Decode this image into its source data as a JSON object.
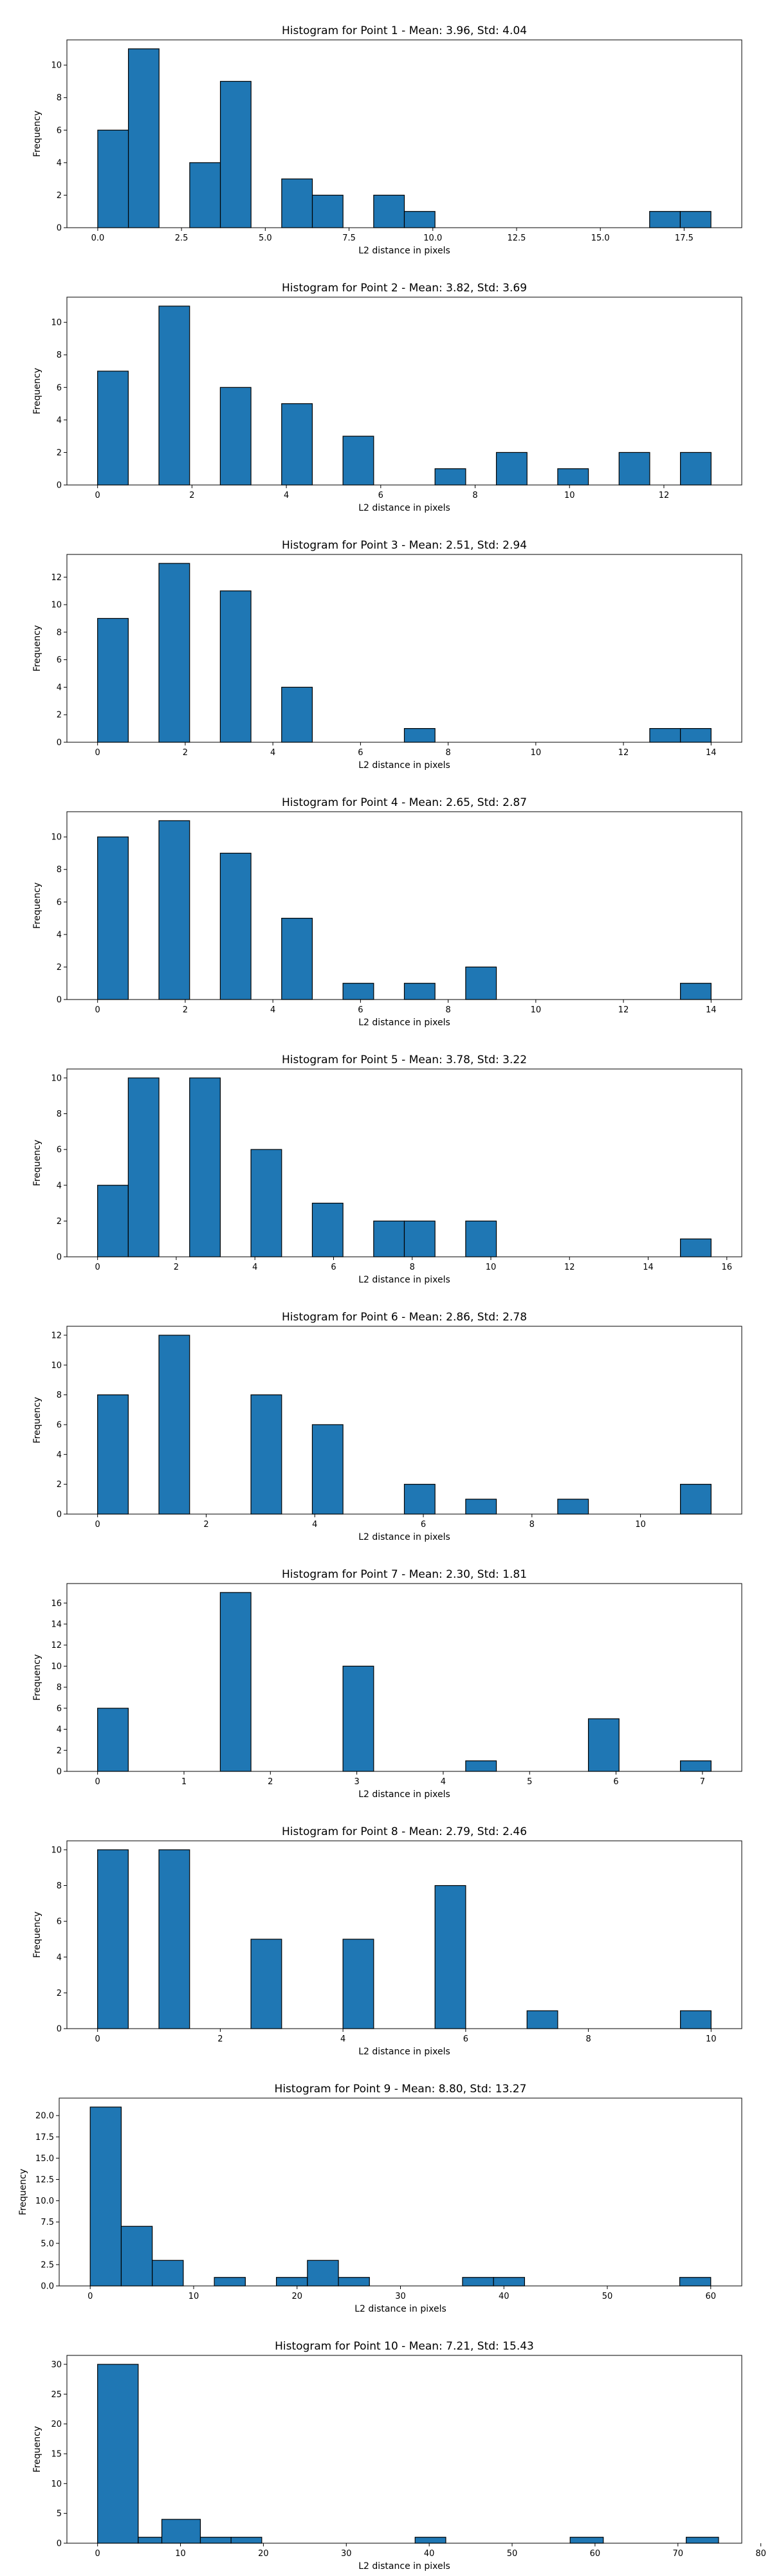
{
  "chart_data": [
    {
      "type": "bar",
      "title": "Histogram for Point 1 - Mean: 3.96, Std: 4.04",
      "xlabel": "L2 distance in pixels",
      "ylabel": "Frequency",
      "xlim": [
        -0.92,
        19.22
      ],
      "ylim": [
        0,
        11.55
      ],
      "xticks": [
        0.0,
        2.5,
        5.0,
        7.5,
        10.0,
        12.5,
        15.0,
        17.5
      ],
      "xtick_labels": [
        "0.0",
        "2.5",
        "5.0",
        "7.5",
        "10.0",
        "12.5",
        "15.0",
        "17.5"
      ],
      "yticks": [
        0,
        2,
        4,
        6,
        8,
        10
      ],
      "ytick_labels": [
        "0",
        "2",
        "4",
        "6",
        "8",
        "10"
      ],
      "bins": [
        {
          "x0": 0.0,
          "x1": 0.915,
          "count": 6
        },
        {
          "x0": 0.915,
          "x1": 1.83,
          "count": 11
        },
        {
          "x0": 2.745,
          "x1": 3.66,
          "count": 4
        },
        {
          "x0": 3.66,
          "x1": 4.575,
          "count": 9
        },
        {
          "x0": 5.49,
          "x1": 6.405,
          "count": 3
        },
        {
          "x0": 6.405,
          "x1": 7.32,
          "count": 2
        },
        {
          "x0": 8.235,
          "x1": 9.15,
          "count": 2
        },
        {
          "x0": 9.15,
          "x1": 10.065,
          "count": 1
        },
        {
          "x0": 16.47,
          "x1": 17.385,
          "count": 1
        },
        {
          "x0": 17.385,
          "x1": 18.3,
          "count": 1
        }
      ],
      "bar_color": "#1f77b4",
      "edge_color": "#000000",
      "grid": false,
      "legend": "none"
    },
    {
      "type": "bar",
      "title": "Histogram for Point 2 - Mean: 3.82, Std: 3.69",
      "xlabel": "L2 distance in pixels",
      "ylabel": "Frequency",
      "xlim": [
        -0.65,
        13.65
      ],
      "ylim": [
        0,
        11.55
      ],
      "xticks": [
        0,
        2,
        4,
        6,
        8,
        10,
        12
      ],
      "xtick_labels": [
        "0",
        "2",
        "4",
        "6",
        "8",
        "10",
        "12"
      ],
      "yticks": [
        0,
        2,
        4,
        6,
        8,
        10
      ],
      "ytick_labels": [
        "0",
        "2",
        "4",
        "6",
        "8",
        "10"
      ],
      "bins": [
        {
          "x0": 0.0,
          "x1": 0.65,
          "count": 7
        },
        {
          "x0": 1.3,
          "x1": 1.95,
          "count": 11
        },
        {
          "x0": 2.6,
          "x1": 3.25,
          "count": 6
        },
        {
          "x0": 3.9,
          "x1": 4.55,
          "count": 5
        },
        {
          "x0": 5.2,
          "x1": 5.85,
          "count": 3
        },
        {
          "x0": 7.15,
          "x1": 7.8,
          "count": 1
        },
        {
          "x0": 8.45,
          "x1": 9.1,
          "count": 2
        },
        {
          "x0": 9.75,
          "x1": 10.4,
          "count": 1
        },
        {
          "x0": 11.05,
          "x1": 11.7,
          "count": 2
        },
        {
          "x0": 12.35,
          "x1": 13.0,
          "count": 2
        }
      ],
      "bar_color": "#1f77b4",
      "edge_color": "#000000",
      "grid": false,
      "legend": "none"
    },
    {
      "type": "bar",
      "title": "Histogram for Point 3 - Mean: 2.51, Std: 2.94",
      "xlabel": "L2 distance in pixels",
      "ylabel": "Frequency",
      "xlim": [
        -0.7,
        14.7
      ],
      "ylim": [
        0,
        13.65
      ],
      "xticks": [
        0,
        2,
        4,
        6,
        8,
        10,
        12,
        14
      ],
      "xtick_labels": [
        "0",
        "2",
        "4",
        "6",
        "8",
        "10",
        "12",
        "14"
      ],
      "yticks": [
        0,
        2,
        4,
        6,
        8,
        10,
        12
      ],
      "ytick_labels": [
        "0",
        "2",
        "4",
        "6",
        "8",
        "10",
        "12"
      ],
      "bins": [
        {
          "x0": 0.0,
          "x1": 0.7,
          "count": 9
        },
        {
          "x0": 1.4,
          "x1": 2.1,
          "count": 13
        },
        {
          "x0": 2.8,
          "x1": 3.5,
          "count": 11
        },
        {
          "x0": 4.2,
          "x1": 4.9,
          "count": 4
        },
        {
          "x0": 7.0,
          "x1": 7.7,
          "count": 1
        },
        {
          "x0": 12.6,
          "x1": 13.3,
          "count": 1
        },
        {
          "x0": 13.3,
          "x1": 14.0,
          "count": 1
        }
      ],
      "bar_color": "#1f77b4",
      "edge_color": "#000000",
      "grid": false,
      "legend": "none"
    },
    {
      "type": "bar",
      "title": "Histogram for Point 4 - Mean: 2.65, Std: 2.87",
      "xlabel": "L2 distance in pixels",
      "ylabel": "Frequency",
      "xlim": [
        -0.7,
        14.7
      ],
      "ylim": [
        0,
        11.55
      ],
      "xticks": [
        0,
        2,
        4,
        6,
        8,
        10,
        12,
        14
      ],
      "xtick_labels": [
        "0",
        "2",
        "4",
        "6",
        "8",
        "10",
        "12",
        "14"
      ],
      "yticks": [
        0,
        2,
        4,
        6,
        8,
        10
      ],
      "ytick_labels": [
        "0",
        "2",
        "4",
        "6",
        "8",
        "10"
      ],
      "bins": [
        {
          "x0": 0.0,
          "x1": 0.7,
          "count": 10
        },
        {
          "x0": 1.4,
          "x1": 2.1,
          "count": 11
        },
        {
          "x0": 2.8,
          "x1": 3.5,
          "count": 9
        },
        {
          "x0": 4.2,
          "x1": 4.9,
          "count": 5
        },
        {
          "x0": 5.6,
          "x1": 6.3,
          "count": 1
        },
        {
          "x0": 7.0,
          "x1": 7.7,
          "count": 1
        },
        {
          "x0": 8.4,
          "x1": 9.1,
          "count": 2
        },
        {
          "x0": 13.3,
          "x1": 14.0,
          "count": 1
        }
      ],
      "bar_color": "#1f77b4",
      "edge_color": "#000000",
      "grid": false,
      "legend": "none"
    },
    {
      "type": "bar",
      "title": "Histogram for Point 5 - Mean: 3.78, Std: 3.22",
      "xlabel": "L2 distance in pixels",
      "ylabel": "Frequency",
      "xlim": [
        -0.78,
        16.38
      ],
      "ylim": [
        0,
        10.5
      ],
      "xticks": [
        0,
        2,
        4,
        6,
        8,
        10,
        12,
        14,
        16
      ],
      "xtick_labels": [
        "0",
        "2",
        "4",
        "6",
        "8",
        "10",
        "12",
        "14",
        "16"
      ],
      "yticks": [
        0,
        2,
        4,
        6,
        8,
        10
      ],
      "ytick_labels": [
        "0",
        "2",
        "4",
        "6",
        "8",
        "10"
      ],
      "bins": [
        {
          "x0": 0.0,
          "x1": 0.78,
          "count": 4
        },
        {
          "x0": 0.78,
          "x1": 1.56,
          "count": 10
        },
        {
          "x0": 2.34,
          "x1": 3.12,
          "count": 10
        },
        {
          "x0": 3.9,
          "x1": 4.68,
          "count": 6
        },
        {
          "x0": 5.46,
          "x1": 6.24,
          "count": 3
        },
        {
          "x0": 7.02,
          "x1": 7.8,
          "count": 2
        },
        {
          "x0": 7.8,
          "x1": 8.58,
          "count": 2
        },
        {
          "x0": 9.36,
          "x1": 10.14,
          "count": 2
        },
        {
          "x0": 14.82,
          "x1": 15.6,
          "count": 1
        }
      ],
      "bar_color": "#1f77b4",
      "edge_color": "#000000",
      "grid": false,
      "legend": "none"
    },
    {
      "type": "bar",
      "title": "Histogram for Point 6 - Mean: 2.86, Std: 2.78",
      "xlabel": "L2 distance in pixels",
      "ylabel": "Frequency",
      "xlim": [
        -0.565,
        11.865
      ],
      "ylim": [
        0,
        12.6
      ],
      "xticks": [
        0,
        2,
        4,
        6,
        8,
        10
      ],
      "xtick_labels": [
        "0",
        "2",
        "4",
        "6",
        "8",
        "10"
      ],
      "yticks": [
        0,
        2,
        4,
        6,
        8,
        10,
        12
      ],
      "ytick_labels": [
        "0",
        "2",
        "4",
        "6",
        "8",
        "10",
        "12"
      ],
      "bins": [
        {
          "x0": 0.0,
          "x1": 0.565,
          "count": 8
        },
        {
          "x0": 1.13,
          "x1": 1.695,
          "count": 12
        },
        {
          "x0": 2.825,
          "x1": 3.39,
          "count": 8
        },
        {
          "x0": 3.955,
          "x1": 4.52,
          "count": 6
        },
        {
          "x0": 5.65,
          "x1": 6.215,
          "count": 2
        },
        {
          "x0": 6.78,
          "x1": 7.345,
          "count": 1
        },
        {
          "x0": 8.475,
          "x1": 9.04,
          "count": 1
        },
        {
          "x0": 10.735,
          "x1": 11.3,
          "count": 2
        }
      ],
      "bar_color": "#1f77b4",
      "edge_color": "#000000",
      "grid": false,
      "legend": "none"
    },
    {
      "type": "bar",
      "title": "Histogram for Point 7 - Mean: 2.30, Std: 1.81",
      "xlabel": "L2 distance in pixels",
      "ylabel": "Frequency",
      "xlim": [
        -0.355,
        7.455
      ],
      "ylim": [
        0,
        17.85
      ],
      "xticks": [
        0,
        1,
        2,
        3,
        4,
        5,
        6,
        7
      ],
      "xtick_labels": [
        "0",
        "1",
        "2",
        "3",
        "4",
        "5",
        "6",
        "7"
      ],
      "yticks": [
        0,
        2,
        4,
        6,
        8,
        10,
        12,
        14,
        16
      ],
      "ytick_labels": [
        "0",
        "2",
        "4",
        "6",
        "8",
        "10",
        "12",
        "14",
        "16"
      ],
      "bins": [
        {
          "x0": 0.0,
          "x1": 0.355,
          "count": 6
        },
        {
          "x0": 1.42,
          "x1": 1.775,
          "count": 17
        },
        {
          "x0": 2.84,
          "x1": 3.195,
          "count": 10
        },
        {
          "x0": 4.26,
          "x1": 4.615,
          "count": 1
        },
        {
          "x0": 5.68,
          "x1": 6.035,
          "count": 5
        },
        {
          "x0": 6.745,
          "x1": 7.1,
          "count": 1
        }
      ],
      "bar_color": "#1f77b4",
      "edge_color": "#000000",
      "grid": false,
      "legend": "none"
    },
    {
      "type": "bar",
      "title": "Histogram for Point 8 - Mean: 2.79, Std: 2.46",
      "xlabel": "L2 distance in pixels",
      "ylabel": "Frequency",
      "xlim": [
        -0.5,
        10.5
      ],
      "ylim": [
        0,
        10.5
      ],
      "xticks": [
        0,
        2,
        4,
        6,
        8,
        10
      ],
      "xtick_labels": [
        "0",
        "2",
        "4",
        "6",
        "8",
        "10"
      ],
      "yticks": [
        0,
        2,
        4,
        6,
        8,
        10
      ],
      "ytick_labels": [
        "0",
        "2",
        "4",
        "6",
        "8",
        "10"
      ],
      "bins": [
        {
          "x0": 0.0,
          "x1": 0.5,
          "count": 10
        },
        {
          "x0": 1.0,
          "x1": 1.5,
          "count": 10
        },
        {
          "x0": 2.5,
          "x1": 3.0,
          "count": 5
        },
        {
          "x0": 4.0,
          "x1": 4.5,
          "count": 5
        },
        {
          "x0": 5.5,
          "x1": 6.0,
          "count": 8
        },
        {
          "x0": 7.0,
          "x1": 7.5,
          "count": 1
        },
        {
          "x0": 9.5,
          "x1": 10.0,
          "count": 1
        }
      ],
      "bar_color": "#1f77b4",
      "edge_color": "#000000",
      "grid": false,
      "legend": "none"
    },
    {
      "type": "bar",
      "title": "Histogram for Point 9 - Mean: 8.80, Std: 13.27",
      "xlabel": "L2 distance in pixels",
      "ylabel": "Frequency",
      "xlim": [
        -3.0,
        63.0
      ],
      "ylim": [
        0,
        22.05
      ],
      "xticks": [
        0,
        10,
        20,
        30,
        40,
        50,
        60
      ],
      "xtick_labels": [
        "0",
        "10",
        "20",
        "30",
        "40",
        "50",
        "60"
      ],
      "yticks": [
        0,
        2.5,
        5.0,
        7.5,
        10.0,
        12.5,
        15.0,
        17.5,
        20.0
      ],
      "ytick_labels": [
        "0.0",
        "2.5",
        "5.0",
        "7.5",
        "10.0",
        "12.5",
        "15.0",
        "17.5",
        "20.0"
      ],
      "bins": [
        {
          "x0": 0.0,
          "x1": 3.0,
          "count": 21
        },
        {
          "x0": 3.0,
          "x1": 6.0,
          "count": 7
        },
        {
          "x0": 6.0,
          "x1": 9.0,
          "count": 3
        },
        {
          "x0": 12.0,
          "x1": 15.0,
          "count": 1
        },
        {
          "x0": 18.0,
          "x1": 21.0,
          "count": 1
        },
        {
          "x0": 21.0,
          "x1": 24.0,
          "count": 3
        },
        {
          "x0": 24.0,
          "x1": 27.0,
          "count": 1
        },
        {
          "x0": 36.0,
          "x1": 39.0,
          "count": 1
        },
        {
          "x0": 39.0,
          "x1": 42.0,
          "count": 1
        },
        {
          "x0": 57.0,
          "x1": 60.0,
          "count": 1
        }
      ],
      "bar_color": "#1f77b4",
      "edge_color": "#000000",
      "grid": false,
      "legend": "none"
    },
    {
      "type": "bar",
      "title": "Histogram for Point 10 - Mean: 7.21, Std: 15.43",
      "xlabel": "L2 distance in pixels",
      "ylabel": "Frequency",
      "xlim": [
        -3.7,
        77.7
      ],
      "ylim": [
        0,
        31.5
      ],
      "xticks": [
        0,
        10,
        20,
        30,
        40,
        50,
        60,
        70,
        80
      ],
      "xtick_labels": [
        "0",
        "10",
        "20",
        "30",
        "40",
        "50",
        "60",
        "70",
        "80"
      ],
      "yticks": [
        0,
        5,
        10,
        15,
        20,
        25,
        30
      ],
      "ytick_labels": [
        "0",
        "5",
        "10",
        "15",
        "20",
        "25",
        "30"
      ],
      "bins": [
        {
          "x0": 0.0,
          "x1": 4.9,
          "count": 30
        },
        {
          "x0": 4.9,
          "x1": 7.75,
          "count": 1
        },
        {
          "x0": 7.75,
          "x1": 12.4,
          "count": 4
        },
        {
          "x0": 12.4,
          "x1": 16.1,
          "count": 1
        },
        {
          "x0": 16.1,
          "x1": 19.8,
          "count": 1
        },
        {
          "x0": 38.3,
          "x1": 42.0,
          "count": 1
        },
        {
          "x0": 57.0,
          "x1": 61.0,
          "count": 1
        },
        {
          "x0": 71.0,
          "x1": 74.9,
          "count": 1
        }
      ],
      "bar_color": "#1f77b4",
      "edge_color": "#000000",
      "grid": false,
      "legend": "none"
    }
  ]
}
